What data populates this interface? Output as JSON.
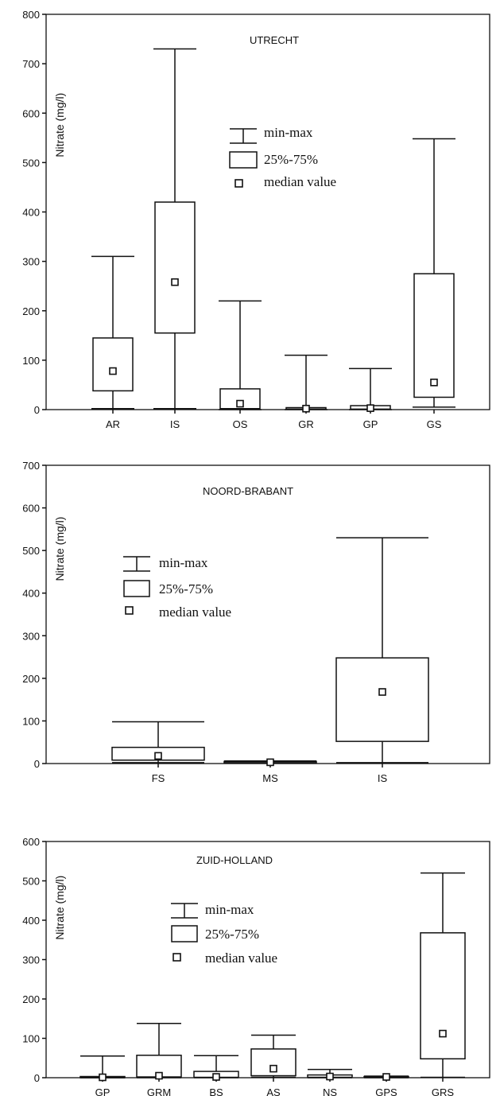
{
  "chart_data": [
    {
      "type": "box",
      "title": "UTRECHT",
      "ylabel": "Nitrate (mg/l)",
      "ylim": [
        0,
        800
      ],
      "yticks": [
        0,
        100,
        200,
        300,
        400,
        500,
        600,
        700,
        800
      ],
      "legend": {
        "placement": "center",
        "minmax_label": "min-max",
        "box_label": "25%-75%",
        "median_label": "median value"
      },
      "categories": [
        {
          "label": "AR",
          "min": 2,
          "q1": 38,
          "median": 78,
          "q3": 145,
          "max": 310
        },
        {
          "label": "IS",
          "min": 2,
          "q1": 155,
          "median": 258,
          "q3": 420,
          "max": 730
        },
        {
          "label": "OS",
          "min": 0,
          "q1": 2,
          "median": 12,
          "q3": 42,
          "max": 220
        },
        {
          "label": "GR",
          "min": 0,
          "q1": 1,
          "median": 2,
          "q3": 4,
          "max": 110
        },
        {
          "label": "GP",
          "min": 0,
          "q1": 1,
          "median": 3,
          "q3": 8,
          "max": 83
        },
        {
          "label": "GS",
          "min": 5,
          "q1": 25,
          "median": 55,
          "q3": 275,
          "max": 548
        }
      ]
    },
    {
      "type": "box",
      "title": "NOORD-BRABANT",
      "ylabel": "Nitrate (mg/l)",
      "ylim": [
        0,
        700
      ],
      "yticks": [
        0,
        100,
        200,
        300,
        400,
        500,
        600,
        700
      ],
      "legend": {
        "placement": "upper-left",
        "minmax_label": "min-max",
        "box_label": "25%-75%",
        "median_label": "median value"
      },
      "categories": [
        {
          "label": "FS",
          "min": 2,
          "q1": 8,
          "median": 18,
          "q3": 38,
          "max": 98
        },
        {
          "label": "MS",
          "min": 1,
          "q1": 2,
          "median": 3,
          "q3": 5,
          "max": 6
        },
        {
          "label": "IS",
          "min": 2,
          "q1": 52,
          "median": 168,
          "q3": 248,
          "max": 530
        }
      ]
    },
    {
      "type": "box",
      "title": "ZUID-HOLLAND",
      "ylabel": "Nitrate (mg/l)",
      "ylim": [
        0,
        600
      ],
      "yticks": [
        0,
        100,
        200,
        300,
        400,
        500,
        600
      ],
      "legend": {
        "placement": "center",
        "minmax_label": "min-max",
        "box_label": "25%-75%",
        "median_label": "median value"
      },
      "categories": [
        {
          "label": "GP",
          "min": 0,
          "q1": 0,
          "median": 1,
          "q3": 3,
          "max": 55
        },
        {
          "label": "GRM",
          "min": 0,
          "q1": 2,
          "median": 5,
          "q3": 57,
          "max": 138
        },
        {
          "label": "BS",
          "min": 0,
          "q1": 1,
          "median": 2,
          "q3": 16,
          "max": 56
        },
        {
          "label": "AS",
          "min": 1,
          "q1": 5,
          "median": 23,
          "q3": 73,
          "max": 108
        },
        {
          "label": "NS",
          "min": 0,
          "q1": 1,
          "median": 3,
          "q3": 7,
          "max": 21
        },
        {
          "label": "GPS",
          "min": 0,
          "q1": 1,
          "median": 2,
          "q3": 3,
          "max": 4
        },
        {
          "label": "GRS",
          "min": 1,
          "q1": 48,
          "median": 112,
          "q3": 368,
          "max": 520
        }
      ]
    }
  ]
}
